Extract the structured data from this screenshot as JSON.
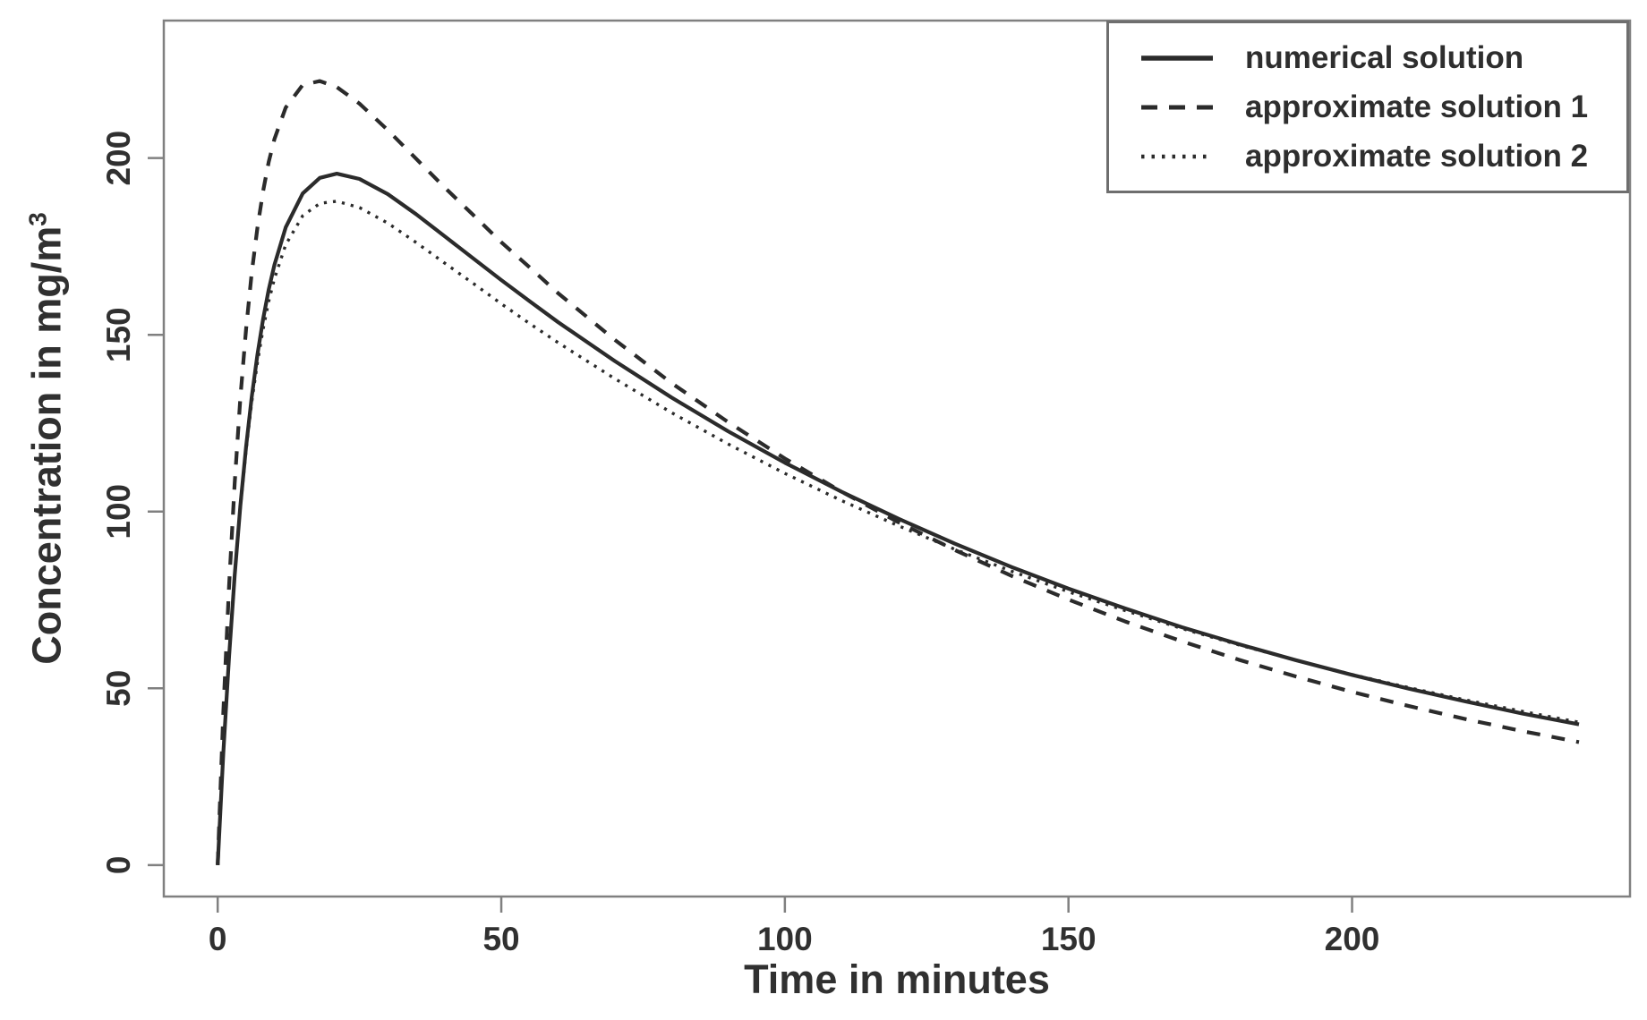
{
  "figure": {
    "background": "#ffffff",
    "text_color": "#303030",
    "axis_color": "#808080",
    "curve_color": "#2b2b2b"
  },
  "chart_data": {
    "type": "line",
    "title": "",
    "xlabel": "Time in minutes",
    "ylabel": "Concentration in mg/m",
    "ylabel_superscript": "3",
    "xticks": [
      0,
      50,
      100,
      150,
      200
    ],
    "yticks": [
      0,
      50,
      100,
      150,
      200
    ],
    "xlim": [
      -9.5,
      249.0
    ],
    "ylim": [
      -8.9,
      238.9
    ],
    "grid": false,
    "legend_position": "top-right",
    "x": [
      0,
      1,
      2,
      3,
      4,
      5,
      6,
      7,
      8,
      9,
      10,
      12,
      15,
      18,
      21,
      25,
      30,
      35,
      40,
      45,
      50,
      55,
      60,
      70,
      80,
      90,
      100,
      110,
      120,
      130,
      140,
      150,
      160,
      170,
      180,
      190,
      200,
      210,
      220,
      230,
      240
    ],
    "series": [
      {
        "name": "numerical solution",
        "style": "solid",
        "values": [
          0,
          31.8,
          58.9,
          82.0,
          101.6,
          118.3,
          132.4,
          144.4,
          154.4,
          162.8,
          169.8,
          180.4,
          190.0,
          194.4,
          195.6,
          194.1,
          189.8,
          184.1,
          177.9,
          171.7,
          165.5,
          159.5,
          153.6,
          142.6,
          132.3,
          122.7,
          113.8,
          105.6,
          98.0,
          90.9,
          84.3,
          78.2,
          72.6,
          67.3,
          62.5,
          58.0,
          53.8,
          49.9,
          46.3,
          42.9,
          39.8
        ]
      },
      {
        "name": "approximate solution 1",
        "style": "dashed",
        "values": [
          0,
          43.3,
          78.9,
          108.1,
          132.1,
          151.6,
          167.5,
          180.3,
          190.6,
          198.9,
          205.4,
          214.3,
          220.7,
          221.8,
          220.1,
          215.4,
          207.9,
          199.8,
          191.7,
          184.0,
          176.2,
          169.1,
          161.8,
          148.6,
          136.4,
          125.3,
          115.0,
          105.6,
          97.0,
          89.1,
          81.8,
          75.1,
          68.9,
          63.3,
          58.1,
          53.4,
          49.0,
          45.0,
          41.3,
          37.9,
          34.8
        ]
      },
      {
        "name": "approximate solution 2",
        "style": "dotted",
        "values": [
          0,
          32.0,
          59.1,
          81.9,
          101.2,
          117.3,
          130.9,
          142.2,
          151.6,
          159.5,
          165.9,
          175.5,
          183.7,
          187.2,
          187.8,
          186.0,
          181.6,
          176.1,
          170.3,
          164.6,
          158.8,
          153.2,
          147.8,
          137.6,
          128.0,
          119.1,
          110.8,
          103.1,
          96.0,
          89.3,
          83.1,
          77.3,
          72.0,
          66.9,
          62.3,
          58.0,
          53.9,
          50.2,
          46.7,
          43.5,
          40.4
        ]
      }
    ]
  }
}
